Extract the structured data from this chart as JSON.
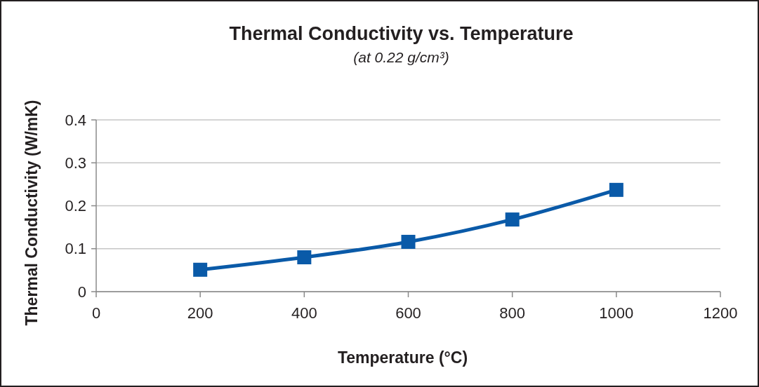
{
  "chart_data": {
    "type": "line",
    "title": "Thermal Conductivity vs. Temperature",
    "subtitle": "(at 0.22 g/cm³)",
    "xlabel": "Temperature (°C)",
    "ylabel": "Thermal Conductivity (W/mK)",
    "x": [
      200,
      400,
      600,
      800,
      1000
    ],
    "series": [
      {
        "color": "#0a5aa8",
        "values": [
          0.051,
          0.08,
          0.116,
          0.168,
          0.237
        ]
      }
    ],
    "xlim": [
      0,
      1200
    ],
    "xticks": [
      0,
      200,
      400,
      600,
      800,
      1000,
      1200
    ],
    "ylim": [
      0,
      0.4
    ],
    "yticks": [
      0,
      0.1,
      0.2,
      0.3,
      0.4
    ],
    "grid": "y",
    "marker": "square",
    "line_style": "solid"
  }
}
